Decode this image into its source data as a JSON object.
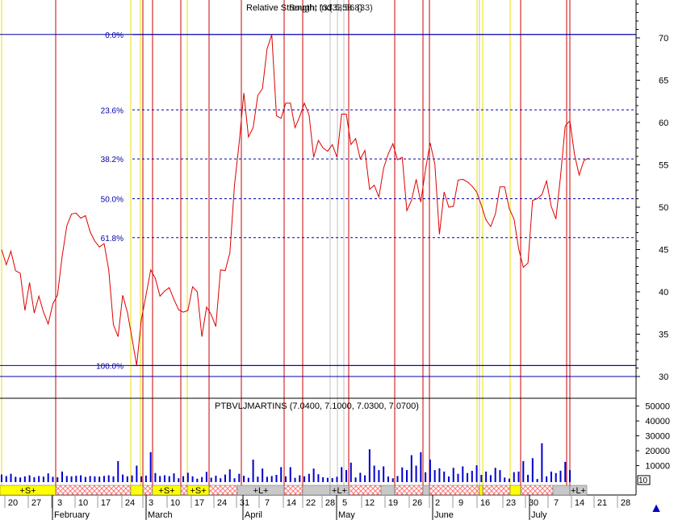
{
  "titles": {
    "main_a": "Relative Strength, Ind",
    "main_b": "Bought (33.5,58.8)",
    "main_c": "(33.56 (33)",
    "sub": "PTBVLJMARTINS (7.0400, 7.1000, 7.0300, 7.0700)"
  },
  "colors": {
    "price_line": "#dd0000",
    "fib_line": "#0000aa",
    "volume_bar": "#0000cc",
    "red_marker": "#cc0000",
    "yellow_marker": "#e8e000",
    "grey_marker": "#c0c0c0",
    "signal_sell": "#ffff00",
    "signal_long": "#c8c8c8",
    "hatch": "#ff7777"
  },
  "chart_data": {
    "type": "line",
    "y_axis_ticks": [
      "70",
      "65",
      "60",
      "55",
      "50",
      "45",
      "40",
      "35",
      "30"
    ],
    "y_range": [
      27.5,
      74.5
    ],
    "fibonacci_levels": [
      {
        "label": "0.0%",
        "value": 70.4
      },
      {
        "label": "23.6%",
        "value": 61.5
      },
      {
        "label": "38.2%",
        "value": 55.7
      },
      {
        "label": "50.0%",
        "value": 51.0
      },
      {
        "label": "61.8%",
        "value": 46.4
      },
      {
        "label": "100.0%",
        "value": 31.3
      }
    ],
    "hlines": [
      70.4,
      31.3,
      30.0
    ],
    "x_slots": 123,
    "series": [
      {
        "values": [
          45.0,
          43.2,
          44.8,
          42.5,
          42.2,
          37.8,
          41.1,
          37.5,
          39.5,
          37.6,
          36.2,
          38.6,
          39.6,
          44.2,
          47.8,
          49.2,
          49.3,
          48.7,
          49.0,
          47.1,
          46.0,
          45.3,
          45.7,
          42.6,
          36.1,
          34.7,
          39.6,
          37.6,
          34.5,
          31.3,
          36.7,
          39.6,
          42.6,
          41.6,
          39.5,
          40.1,
          40.5,
          39.1,
          37.9,
          37.6,
          37.8,
          40.6,
          40.0,
          34.7,
          38.2,
          37.3,
          35.9,
          42.6,
          42.5,
          44.6,
          52.6,
          57.6,
          63.5,
          58.3,
          59.4,
          63.2,
          64.0,
          68.7,
          70.4,
          60.8,
          60.5,
          62.3,
          62.3,
          59.4,
          60.7,
          62.3,
          60.9,
          55.9,
          57.9,
          57.0,
          56.6,
          57.4,
          55.9,
          61.0,
          61.0,
          57.4,
          58.1,
          55.7,
          56.7,
          52.1,
          52.6,
          51.2,
          54.6,
          56.3,
          57.5,
          55.6,
          55.9,
          49.6,
          50.8,
          53.3,
          50.6,
          54.4,
          57.6,
          55.1,
          46.8,
          51.8,
          50.0,
          50.1,
          53.2,
          53.3,
          53.0,
          52.5,
          51.8,
          50.2,
          48.5,
          47.7,
          49.2,
          52.4,
          52.4,
          49.8,
          48.6,
          45.1,
          42.9,
          43.4,
          50.8,
          51.0,
          51.5,
          53.1,
          50.1,
          48.6,
          53.7,
          59.6,
          60.2,
          56.2,
          53.8,
          55.5,
          55.8
        ]
      }
    ],
    "volume_ticks": [
      "50000",
      "40000",
      "30000",
      "20000",
      "10000"
    ],
    "volume_max": 52000,
    "volume": [
      4000,
      3000,
      4500,
      2500,
      2000,
      2800,
      3500,
      2200,
      3000,
      2600,
      4800,
      2500,
      2200,
      6000,
      3000,
      2800,
      3200,
      3500,
      2400,
      3000,
      2800,
      2600,
      3100,
      3500,
      2800,
      13000,
      4000,
      2800,
      3400,
      10000,
      2800,
      3300,
      19000,
      5000,
      3000,
      3500,
      2900,
      4800,
      1500,
      2900,
      5200,
      2800,
      1200,
      2300,
      5800,
      1900,
      3200,
      1500,
      4000,
      7500,
      1500,
      4500,
      3200,
      1800,
      14000,
      2600,
      8000,
      2500,
      3000,
      3800,
      9000,
      2800,
      9000,
      1800,
      3500,
      2800,
      4500,
      8000,
      4200,
      2200,
      1800,
      1600,
      2500,
      9000,
      7000,
      12000,
      2000,
      5200,
      3500,
      21000,
      10000,
      7000,
      9500,
      2700,
      1500,
      3000,
      8800,
      7000,
      17000,
      10000,
      19000,
      5500,
      14000,
      7000,
      8200,
      6000,
      2700,
      8500,
      4500,
      9500,
      5000,
      6500,
      10200,
      3800,
      6000,
      3600,
      8500,
      7000,
      2000,
      1300,
      5600,
      6000,
      13000,
      3800,
      15000,
      1000,
      25000,
      2800,
      6000,
      5000,
      6600,
      12500,
      7000
    ],
    "x_ticks": [
      "20",
      "27",
      "3",
      "10",
      "17",
      "24",
      "3",
      "10",
      "17",
      "24",
      "31",
      "7",
      "14",
      "22",
      "28",
      "5",
      "12",
      "19",
      "26",
      "2",
      "9",
      "16",
      "23",
      "30",
      "7",
      "14",
      "21",
      "28"
    ],
    "month_labels": [
      "February",
      "March",
      "April",
      "May",
      "June",
      "July"
    ],
    "signals": [
      {
        "label": "+S+",
        "type": "sell"
      },
      {
        "label": "+S+",
        "type": "sell"
      },
      {
        "label": "+S+",
        "type": "sell"
      },
      {
        "label": "+L+",
        "type": "long"
      },
      {
        "label": "+L+",
        "type": "long"
      },
      {
        "label": "+L+",
        "type": "long"
      }
    ],
    "corner_value": "10"
  }
}
